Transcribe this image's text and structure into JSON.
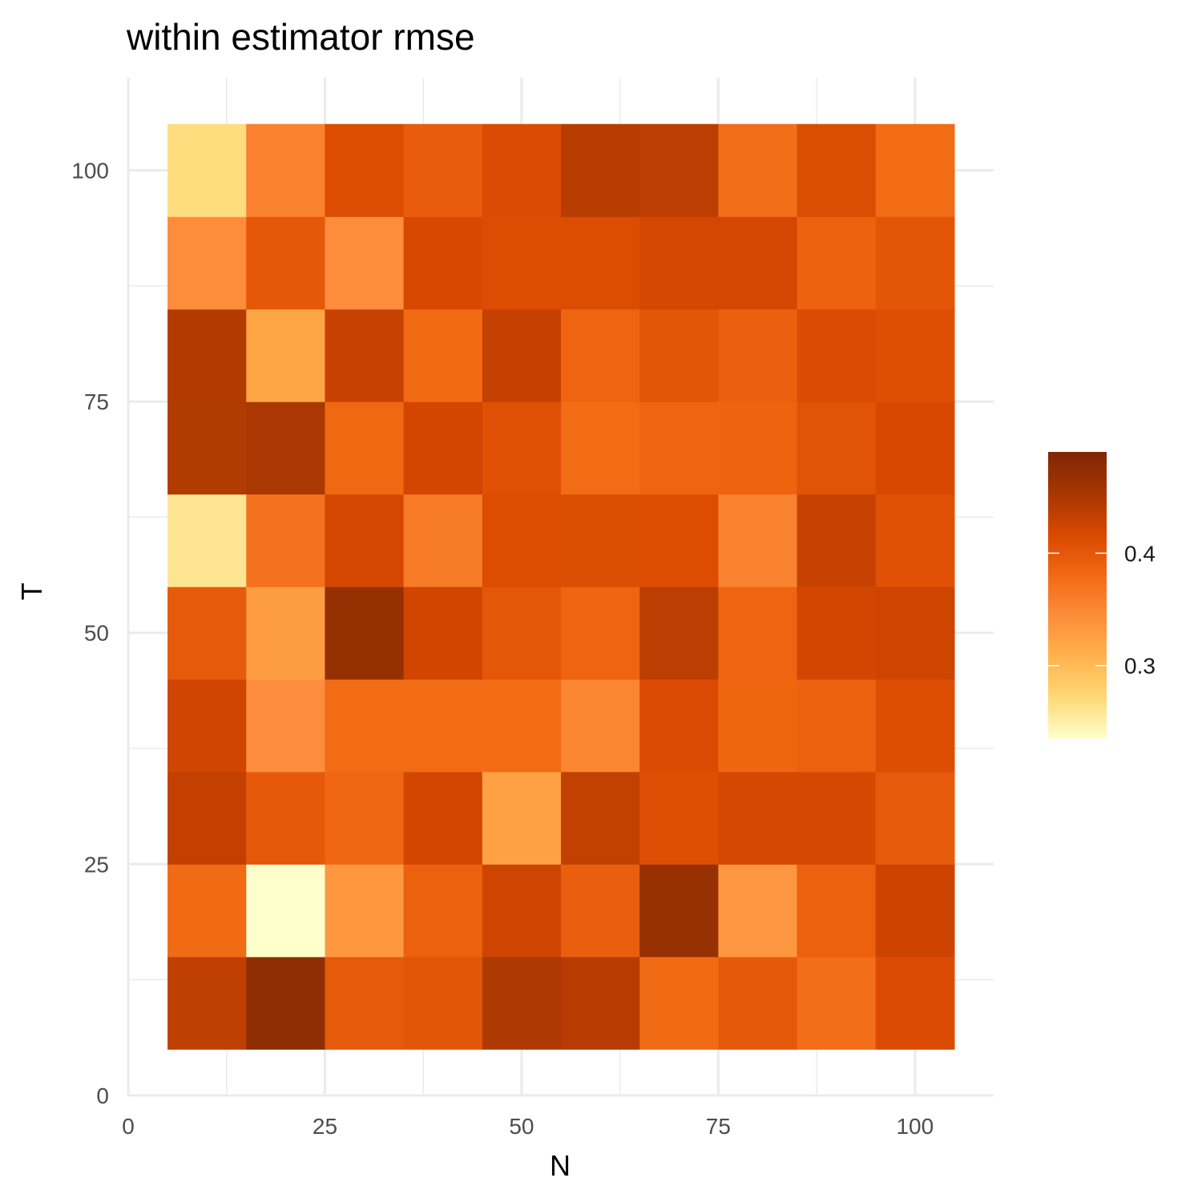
{
  "chart_data": {
    "type": "heatmap",
    "title": "within estimator rmse",
    "xlabel": "N",
    "ylabel": "T",
    "xlim": [
      0,
      110
    ],
    "ylim": [
      0,
      110
    ],
    "x_ticks": [
      0,
      25,
      50,
      75,
      100
    ],
    "y_ticks": [
      0,
      25,
      50,
      75,
      100
    ],
    "x_tick_labels": [
      "0",
      "25",
      "50",
      "75",
      "100"
    ],
    "y_tick_labels": [
      "0",
      "25",
      "50",
      "75",
      "100"
    ],
    "tile_width": 10,
    "tile_height": 10,
    "x": [
      10,
      20,
      30,
      40,
      50,
      60,
      70,
      80,
      90,
      100
    ],
    "y": [
      10,
      20,
      30,
      40,
      50,
      60,
      70,
      80,
      90,
      100
    ],
    "values": [
      [
        0.435,
        0.475,
        0.397,
        0.402,
        0.447,
        0.442,
        0.38,
        0.398,
        0.376,
        0.414
      ],
      [
        0.38,
        0.235,
        0.333,
        0.39,
        0.425,
        0.392,
        0.468,
        0.335,
        0.39,
        0.426
      ],
      [
        0.433,
        0.398,
        0.383,
        0.422,
        0.325,
        0.434,
        0.409,
        0.419,
        0.419,
        0.397
      ],
      [
        0.424,
        0.344,
        0.379,
        0.379,
        0.379,
        0.352,
        0.414,
        0.384,
        0.388,
        0.411
      ],
      [
        0.397,
        0.33,
        0.469,
        0.423,
        0.401,
        0.386,
        0.437,
        0.386,
        0.422,
        0.425
      ],
      [
        0.26,
        0.372,
        0.42,
        0.363,
        0.413,
        0.412,
        0.413,
        0.355,
        0.43,
        0.407
      ],
      [
        0.445,
        0.45,
        0.382,
        0.422,
        0.408,
        0.378,
        0.386,
        0.387,
        0.405,
        0.418
      ],
      [
        0.444,
        0.321,
        0.43,
        0.38,
        0.432,
        0.386,
        0.402,
        0.391,
        0.414,
        0.409
      ],
      [
        0.345,
        0.399,
        0.345,
        0.417,
        0.413,
        0.413,
        0.421,
        0.421,
        0.388,
        0.402
      ],
      [
        0.268,
        0.356,
        0.413,
        0.395,
        0.414,
        0.442,
        0.438,
        0.376,
        0.412,
        0.379
      ]
    ],
    "legend": {
      "title": "",
      "min": 0.235,
      "max": 0.49,
      "breaks": [
        0.3,
        0.4
      ],
      "break_labels": [
        "0.3",
        "0.4"
      ],
      "position": "right"
    },
    "grid": true,
    "colorscale": [
      "#ffffcc",
      "#fed976",
      "#feb24c",
      "#fd8d3c",
      "#f16913",
      "#d94801",
      "#a63603",
      "#7f2704"
    ]
  }
}
